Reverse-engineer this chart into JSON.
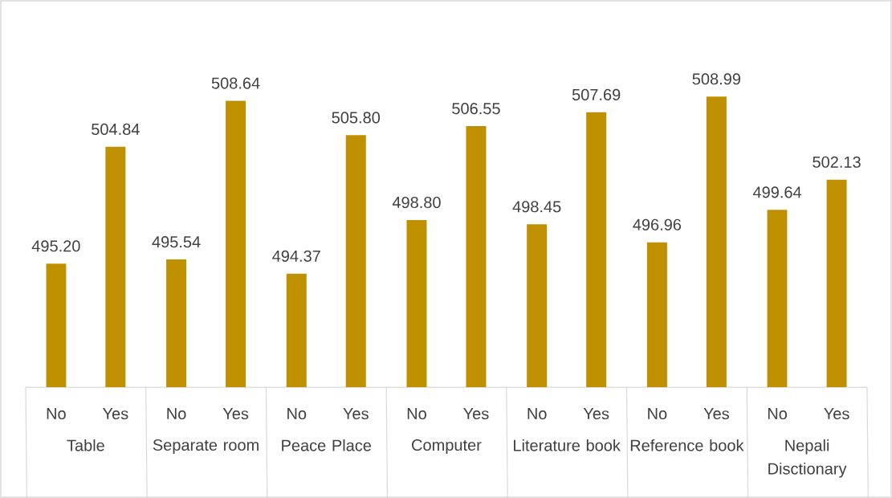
{
  "chart_data": {
    "type": "bar",
    "categories": [
      "Table",
      "Separate room",
      "Peace Place",
      "Computer",
      "Literature book",
      "Reference book",
      "Nepali Disctionary"
    ],
    "series": [
      {
        "name": "No",
        "color": "#bf9000",
        "values": [
          495.2,
          495.54,
          494.37,
          498.8,
          498.45,
          496.96,
          499.64
        ],
        "value_labels": [
          "495.20",
          "495.54",
          "494.37",
          "498.80",
          "498.45",
          "496.96",
          "499.64"
        ]
      },
      {
        "name": "Yes",
        "color": "#bf9000",
        "values": [
          504.84,
          508.64,
          505.8,
          506.55,
          507.69,
          508.99,
          502.13
        ],
        "value_labels": [
          "504.84",
          "508.64",
          "505.80",
          "506.55",
          "507.69",
          "508.99",
          "502.13"
        ]
      }
    ],
    "ylim": [
      485,
      509
    ],
    "tick_labels": "x"
  }
}
